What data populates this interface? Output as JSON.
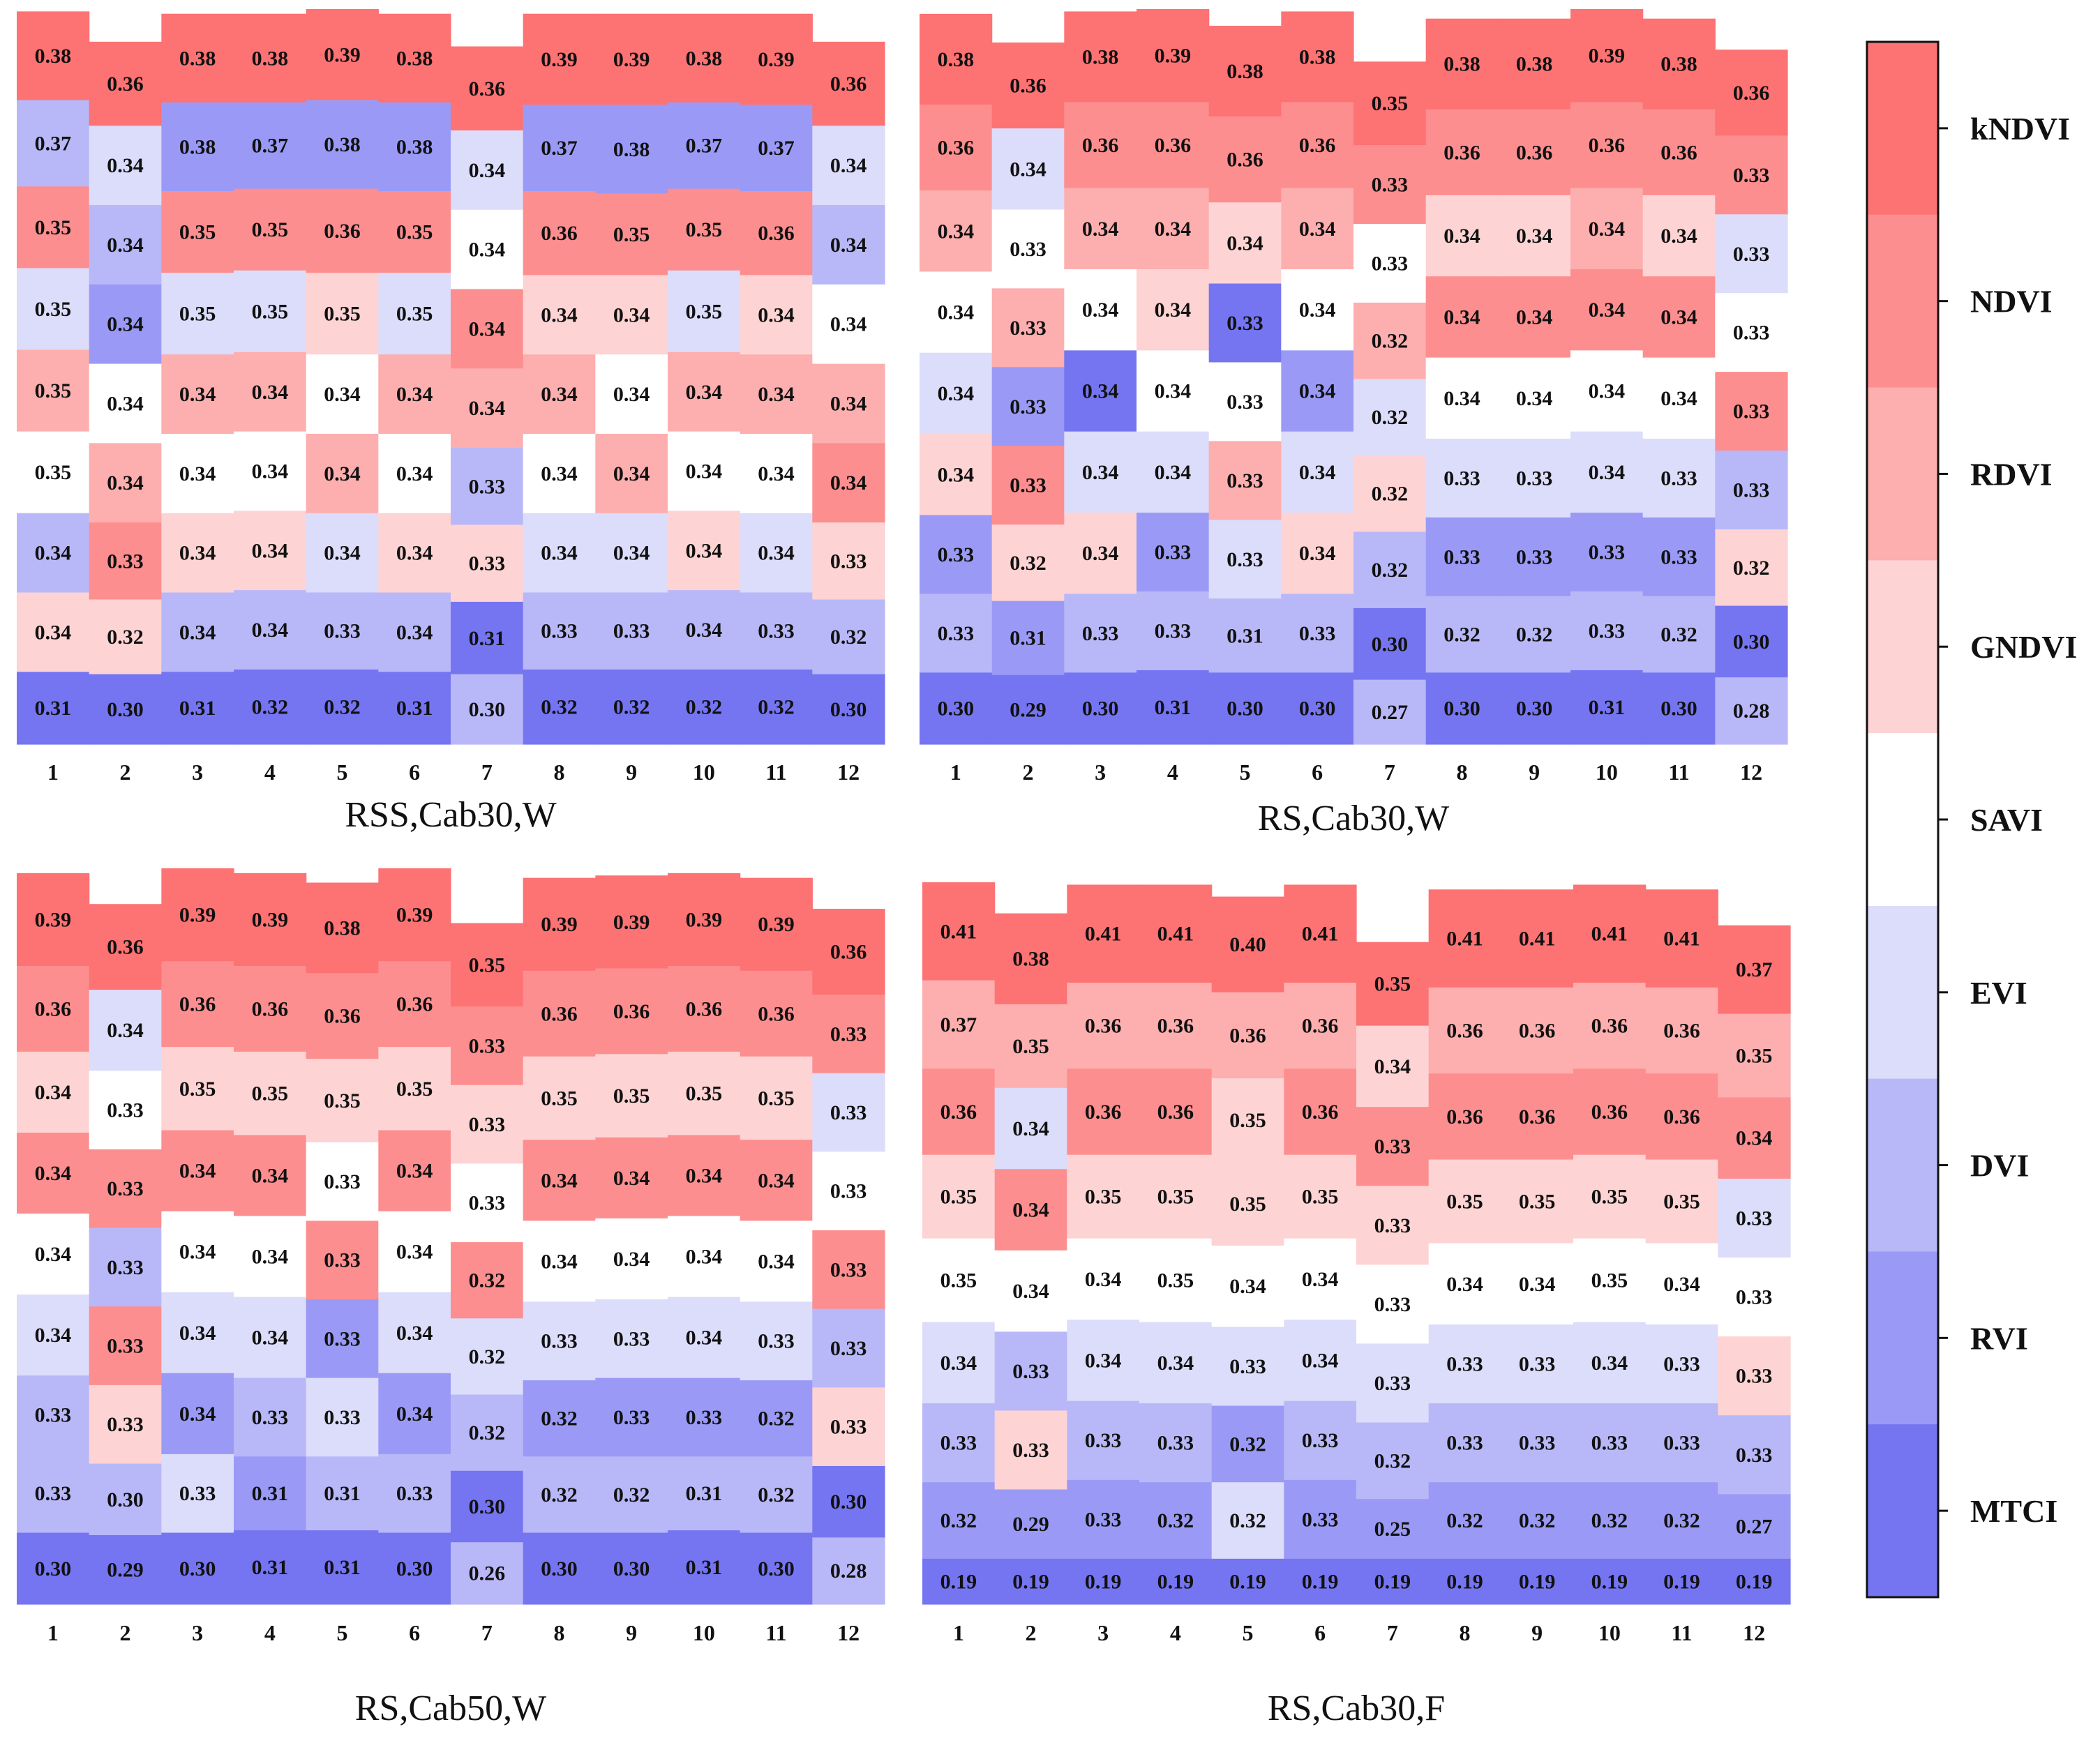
{
  "chart_data": [
    {
      "type": "heatmap",
      "title": "RSS,Cab30,W",
      "categories": [
        "1",
        "2",
        "3",
        "4",
        "5",
        "6",
        "7",
        "8",
        "9",
        "10",
        "11",
        "12"
      ],
      "columns": [
        [
          0.38,
          0.37,
          0.35,
          0.35,
          0.35,
          0.35,
          0.34,
          0.34,
          0.31
        ],
        [
          0.36,
          0.34,
          0.34,
          0.34,
          0.34,
          0.34,
          0.33,
          0.32,
          0.3
        ],
        [
          0.38,
          0.38,
          0.35,
          0.35,
          0.34,
          0.34,
          0.34,
          0.34,
          0.31
        ],
        [
          0.38,
          0.37,
          0.35,
          0.35,
          0.34,
          0.34,
          0.34,
          0.34,
          0.32
        ],
        [
          0.39,
          0.38,
          0.36,
          0.35,
          0.34,
          0.34,
          0.34,
          0.33,
          0.32
        ],
        [
          0.38,
          0.38,
          0.35,
          0.35,
          0.34,
          0.34,
          0.34,
          0.34,
          0.31
        ],
        [
          0.36,
          0.34,
          0.34,
          0.34,
          0.34,
          0.33,
          0.33,
          0.31,
          0.3
        ],
        [
          0.39,
          0.37,
          0.36,
          0.34,
          0.34,
          0.34,
          0.34,
          0.33,
          0.32
        ],
        [
          0.39,
          0.38,
          0.35,
          0.34,
          0.34,
          0.34,
          0.34,
          0.33,
          0.32
        ],
        [
          0.38,
          0.37,
          0.35,
          0.35,
          0.34,
          0.34,
          0.34,
          0.34,
          0.32
        ],
        [
          0.39,
          0.37,
          0.36,
          0.34,
          0.34,
          0.34,
          0.34,
          0.33,
          0.32
        ],
        [
          0.36,
          0.34,
          0.34,
          0.34,
          0.34,
          0.34,
          0.33,
          0.32,
          0.3
        ]
      ],
      "colors": [
        [
          "kNDVI",
          "DVI",
          "NDVI",
          "EVI",
          "RDVI",
          "SAVI",
          "DVI",
          "GNDVI",
          "MTCI"
        ],
        [
          "kNDVI",
          "EVI",
          "DVI",
          "RVI",
          "SAVI",
          "RDVI",
          "NDVI",
          "GNDVI",
          "MTCI"
        ],
        [
          "kNDVI",
          "RVI",
          "NDVI",
          "EVI",
          "RDVI",
          "SAVI",
          "GNDVI",
          "DVI",
          "MTCI"
        ],
        [
          "kNDVI",
          "RVI",
          "NDVI",
          "EVI",
          "RDVI",
          "SAVI",
          "GNDVI",
          "DVI",
          "MTCI"
        ],
        [
          "kNDVI",
          "RVI",
          "NDVI",
          "GNDVI",
          "SAVI",
          "RDVI",
          "EVI",
          "DVI",
          "MTCI"
        ],
        [
          "kNDVI",
          "RVI",
          "NDVI",
          "EVI",
          "RDVI",
          "SAVI",
          "GNDVI",
          "DVI",
          "MTCI"
        ],
        [
          "kNDVI",
          "EVI",
          "SAVI",
          "NDVI",
          "RDVI",
          "DVI",
          "GNDVI",
          "MTCI",
          "DVI"
        ],
        [
          "kNDVI",
          "RVI",
          "NDVI",
          "GNDVI",
          "RDVI",
          "SAVI",
          "EVI",
          "DVI",
          "MTCI"
        ],
        [
          "kNDVI",
          "RVI",
          "NDVI",
          "GNDVI",
          "SAVI",
          "RDVI",
          "EVI",
          "DVI",
          "MTCI"
        ],
        [
          "kNDVI",
          "RVI",
          "NDVI",
          "EVI",
          "RDVI",
          "SAVI",
          "GNDVI",
          "DVI",
          "MTCI"
        ],
        [
          "kNDVI",
          "RVI",
          "NDVI",
          "GNDVI",
          "RDVI",
          "SAVI",
          "EVI",
          "DVI",
          "MTCI"
        ],
        [
          "kNDVI",
          "EVI",
          "DVI",
          "SAVI",
          "RDVI",
          "NDVI",
          "GNDVI",
          "DVI",
          "MTCI"
        ]
      ]
    },
    {
      "type": "heatmap",
      "title": "RS,Cab30,W",
      "categories": [
        "1",
        "2",
        "3",
        "4",
        "5",
        "6",
        "7",
        "8",
        "9",
        "10",
        "11",
        "12"
      ],
      "columns": [
        [
          0.38,
          0.36,
          0.34,
          0.34,
          0.34,
          0.34,
          0.33,
          0.33,
          0.3
        ],
        [
          0.36,
          0.34,
          0.33,
          0.33,
          0.33,
          0.33,
          0.32,
          0.31,
          0.29
        ],
        [
          0.38,
          0.36,
          0.34,
          0.34,
          0.34,
          0.34,
          0.34,
          0.33,
          0.3
        ],
        [
          0.39,
          0.36,
          0.34,
          0.34,
          0.34,
          0.34,
          0.33,
          0.33,
          0.31
        ],
        [
          0.38,
          0.36,
          0.34,
          0.33,
          0.33,
          0.33,
          0.33,
          0.31,
          0.3
        ],
        [
          0.38,
          0.36,
          0.34,
          0.34,
          0.34,
          0.34,
          0.34,
          0.33,
          0.3
        ],
        [
          0.35,
          0.33,
          0.33,
          0.32,
          0.32,
          0.32,
          0.32,
          0.3,
          0.27
        ],
        [
          0.38,
          0.36,
          0.34,
          0.34,
          0.34,
          0.33,
          0.33,
          0.32,
          0.3
        ],
        [
          0.38,
          0.36,
          0.34,
          0.34,
          0.34,
          0.33,
          0.33,
          0.32,
          0.3
        ],
        [
          0.39,
          0.36,
          0.34,
          0.34,
          0.34,
          0.34,
          0.33,
          0.33,
          0.31
        ],
        [
          0.38,
          0.36,
          0.34,
          0.34,
          0.34,
          0.33,
          0.33,
          0.32,
          0.3
        ],
        [
          0.36,
          0.33,
          0.33,
          0.33,
          0.33,
          0.33,
          0.32,
          0.3,
          0.28
        ]
      ],
      "colors": [
        [
          "kNDVI",
          "NDVI",
          "RDVI",
          "SAVI",
          "EVI",
          "GNDVI",
          "RVI",
          "DVI",
          "MTCI"
        ],
        [
          "kNDVI",
          "EVI",
          "SAVI",
          "RDVI",
          "RVI",
          "NDVI",
          "GNDVI",
          "RVI",
          "MTCI"
        ],
        [
          "kNDVI",
          "NDVI",
          "RDVI",
          "SAVI",
          "MTCI",
          "EVI",
          "GNDVI",
          "DVI",
          "MTCI"
        ],
        [
          "kNDVI",
          "NDVI",
          "RDVI",
          "GNDVI",
          "SAVI",
          "EVI",
          "RVI",
          "DVI",
          "MTCI"
        ],
        [
          "kNDVI",
          "NDVI",
          "GNDVI",
          "MTCI",
          "SAVI",
          "RDVI",
          "EVI",
          "DVI",
          "MTCI"
        ],
        [
          "kNDVI",
          "NDVI",
          "RDVI",
          "SAVI",
          "RVI",
          "EVI",
          "GNDVI",
          "DVI",
          "MTCI"
        ],
        [
          "kNDVI",
          "NDVI",
          "SAVI",
          "RDVI",
          "EVI",
          "GNDVI",
          "DVI",
          "MTCI",
          "DVI"
        ],
        [
          "kNDVI",
          "NDVI",
          "GNDVI",
          "NDVI",
          "SAVI",
          "EVI",
          "RVI",
          "DVI",
          "MTCI"
        ],
        [
          "kNDVI",
          "NDVI",
          "GNDVI",
          "NDVI",
          "SAVI",
          "EVI",
          "RVI",
          "DVI",
          "MTCI"
        ],
        [
          "kNDVI",
          "NDVI",
          "RDVI",
          "NDVI",
          "SAVI",
          "EVI",
          "RVI",
          "DVI",
          "MTCI"
        ],
        [
          "kNDVI",
          "NDVI",
          "GNDVI",
          "NDVI",
          "SAVI",
          "EVI",
          "RVI",
          "DVI",
          "MTCI"
        ],
        [
          "kNDVI",
          "NDVI",
          "EVI",
          "SAVI",
          "NDVI",
          "DVI",
          "GNDVI",
          "MTCI",
          "DVI"
        ]
      ]
    },
    {
      "type": "heatmap",
      "title": "RS,Cab50,W",
      "categories": [
        "1",
        "2",
        "3",
        "4",
        "5",
        "6",
        "7",
        "8",
        "9",
        "10",
        "11",
        "12"
      ],
      "columns": [
        [
          0.39,
          0.36,
          0.34,
          0.34,
          0.34,
          0.34,
          0.33,
          0.33,
          0.3
        ],
        [
          0.36,
          0.34,
          0.33,
          0.33,
          0.33,
          0.33,
          0.33,
          0.3,
          0.29
        ],
        [
          0.39,
          0.36,
          0.35,
          0.34,
          0.34,
          0.34,
          0.34,
          0.33,
          0.3
        ],
        [
          0.39,
          0.36,
          0.35,
          0.34,
          0.34,
          0.34,
          0.33,
          0.31,
          0.31
        ],
        [
          0.38,
          0.36,
          0.35,
          0.33,
          0.33,
          0.33,
          0.33,
          0.31,
          0.31
        ],
        [
          0.39,
          0.36,
          0.35,
          0.34,
          0.34,
          0.34,
          0.34,
          0.33,
          0.3
        ],
        [
          0.35,
          0.33,
          0.33,
          0.33,
          0.32,
          0.32,
          0.32,
          0.3,
          0.26
        ],
        [
          0.39,
          0.36,
          0.35,
          0.34,
          0.34,
          0.33,
          0.32,
          0.32,
          0.3
        ],
        [
          0.39,
          0.36,
          0.35,
          0.34,
          0.34,
          0.33,
          0.33,
          0.32,
          0.3
        ],
        [
          0.39,
          0.36,
          0.35,
          0.34,
          0.34,
          0.34,
          0.33,
          0.31,
          0.31
        ],
        [
          0.39,
          0.36,
          0.35,
          0.34,
          0.34,
          0.33,
          0.32,
          0.32,
          0.3
        ],
        [
          0.36,
          0.33,
          0.33,
          0.33,
          0.33,
          0.33,
          0.33,
          0.3,
          0.28
        ]
      ],
      "colors": [
        [
          "kNDVI",
          "NDVI",
          "GNDVI",
          "NDVI",
          "SAVI",
          "EVI",
          "DVI",
          "DVI",
          "MTCI"
        ],
        [
          "kNDVI",
          "EVI",
          "SAVI",
          "NDVI",
          "DVI",
          "NDVI",
          "GNDVI",
          "DVI",
          "MTCI"
        ],
        [
          "kNDVI",
          "NDVI",
          "GNDVI",
          "NDVI",
          "SAVI",
          "EVI",
          "RVI",
          "EVI",
          "MTCI"
        ],
        [
          "kNDVI",
          "NDVI",
          "GNDVI",
          "NDVI",
          "SAVI",
          "EVI",
          "DVI",
          "RVI",
          "MTCI"
        ],
        [
          "kNDVI",
          "NDVI",
          "GNDVI",
          "SAVI",
          "NDVI",
          "RVI",
          "EVI",
          "DVI",
          "MTCI"
        ],
        [
          "kNDVI",
          "NDVI",
          "GNDVI",
          "NDVI",
          "SAVI",
          "EVI",
          "RVI",
          "DVI",
          "MTCI"
        ],
        [
          "kNDVI",
          "NDVI",
          "GNDVI",
          "SAVI",
          "NDVI",
          "EVI",
          "DVI",
          "MTCI",
          "DVI"
        ],
        [
          "kNDVI",
          "NDVI",
          "GNDVI",
          "NDVI",
          "SAVI",
          "EVI",
          "RVI",
          "DVI",
          "MTCI"
        ],
        [
          "kNDVI",
          "NDVI",
          "GNDVI",
          "NDVI",
          "SAVI",
          "EVI",
          "RVI",
          "DVI",
          "MTCI"
        ],
        [
          "kNDVI",
          "NDVI",
          "GNDVI",
          "NDVI",
          "SAVI",
          "EVI",
          "RVI",
          "DVI",
          "MTCI"
        ],
        [
          "kNDVI",
          "NDVI",
          "GNDVI",
          "NDVI",
          "SAVI",
          "EVI",
          "RVI",
          "DVI",
          "MTCI"
        ],
        [
          "kNDVI",
          "NDVI",
          "EVI",
          "SAVI",
          "NDVI",
          "DVI",
          "GNDVI",
          "MTCI",
          "DVI"
        ]
      ]
    },
    {
      "type": "heatmap",
      "title": "RS,Cab30,F",
      "categories": [
        "1",
        "2",
        "3",
        "4",
        "5",
        "6",
        "7",
        "8",
        "9",
        "10",
        "11",
        "12"
      ],
      "columns": [
        [
          0.41,
          0.37,
          0.36,
          0.35,
          0.35,
          0.34,
          0.33,
          0.32,
          0.19
        ],
        [
          0.38,
          0.35,
          0.34,
          0.34,
          0.34,
          0.33,
          0.33,
          0.29,
          0.19
        ],
        [
          0.41,
          0.36,
          0.36,
          0.35,
          0.34,
          0.34,
          0.33,
          0.33,
          0.19
        ],
        [
          0.41,
          0.36,
          0.36,
          0.35,
          0.35,
          0.34,
          0.33,
          0.32,
          0.19
        ],
        [
          0.4,
          0.36,
          0.35,
          0.35,
          0.34,
          0.33,
          0.32,
          0.32,
          0.19
        ],
        [
          0.41,
          0.36,
          0.36,
          0.35,
          0.34,
          0.34,
          0.33,
          0.33,
          0.19
        ],
        [
          0.35,
          0.34,
          0.33,
          0.33,
          0.33,
          0.33,
          0.32,
          0.25,
          0.19
        ],
        [
          0.41,
          0.36,
          0.36,
          0.35,
          0.34,
          0.33,
          0.33,
          0.32,
          0.19
        ],
        [
          0.41,
          0.36,
          0.36,
          0.35,
          0.34,
          0.33,
          0.33,
          0.32,
          0.19
        ],
        [
          0.41,
          0.36,
          0.36,
          0.35,
          0.35,
          0.34,
          0.33,
          0.32,
          0.19
        ],
        [
          0.41,
          0.36,
          0.36,
          0.35,
          0.34,
          0.33,
          0.33,
          0.32,
          0.19
        ],
        [
          0.37,
          0.35,
          0.34,
          0.33,
          0.33,
          0.33,
          0.33,
          0.27,
          0.19
        ]
      ],
      "colors": [
        [
          "kNDVI",
          "RDVI",
          "NDVI",
          "GNDVI",
          "SAVI",
          "EVI",
          "DVI",
          "RVI",
          "MTCI"
        ],
        [
          "kNDVI",
          "RDVI",
          "EVI",
          "NDVI",
          "SAVI",
          "DVI",
          "GNDVI",
          "RVI",
          "MTCI"
        ],
        [
          "kNDVI",
          "RDVI",
          "NDVI",
          "GNDVI",
          "SAVI",
          "EVI",
          "DVI",
          "RVI",
          "MTCI"
        ],
        [
          "kNDVI",
          "RDVI",
          "NDVI",
          "GNDVI",
          "SAVI",
          "EVI",
          "DVI",
          "RVI",
          "MTCI"
        ],
        [
          "kNDVI",
          "RDVI",
          "GNDVI",
          "GNDVI",
          "SAVI",
          "EVI",
          "RVI",
          "EVI",
          "MTCI"
        ],
        [
          "kNDVI",
          "RDVI",
          "NDVI",
          "GNDVI",
          "SAVI",
          "EVI",
          "DVI",
          "RVI",
          "MTCI"
        ],
        [
          "kNDVI",
          "GNDVI",
          "NDVI",
          "GNDVI",
          "SAVI",
          "EVI",
          "DVI",
          "RVI",
          "MTCI"
        ],
        [
          "kNDVI",
          "RDVI",
          "NDVI",
          "GNDVI",
          "SAVI",
          "EVI",
          "DVI",
          "RVI",
          "MTCI"
        ],
        [
          "kNDVI",
          "RDVI",
          "NDVI",
          "GNDVI",
          "SAVI",
          "EVI",
          "DVI",
          "RVI",
          "MTCI"
        ],
        [
          "kNDVI",
          "RDVI",
          "NDVI",
          "GNDVI",
          "SAVI",
          "EVI",
          "DVI",
          "RVI",
          "MTCI"
        ],
        [
          "kNDVI",
          "RDVI",
          "NDVI",
          "GNDVI",
          "SAVI",
          "EVI",
          "DVI",
          "RVI",
          "MTCI"
        ],
        [
          "kNDVI",
          "RDVI",
          "NDVI",
          "EVI",
          "SAVI",
          "GNDVI",
          "DVI",
          "RVI",
          "MTCI"
        ]
      ]
    }
  ],
  "legend": {
    "labels": [
      "kNDVI",
      "NDVI",
      "RDVI",
      "GNDVI",
      "SAVI",
      "EVI",
      "DVI",
      "RVI",
      "MTCI"
    ],
    "colors": {
      "kNDVI": "#fd7273",
      "NDVI": "#fd8e8f",
      "RDVI": "#fdaeae",
      "GNDVI": "#fed3d3",
      "SAVI": "#ffffff",
      "EVI": "#dcdcfb",
      "DVI": "#b8b8f8",
      "RVI": "#9a9af6",
      "MTCI": "#7575f2"
    }
  }
}
